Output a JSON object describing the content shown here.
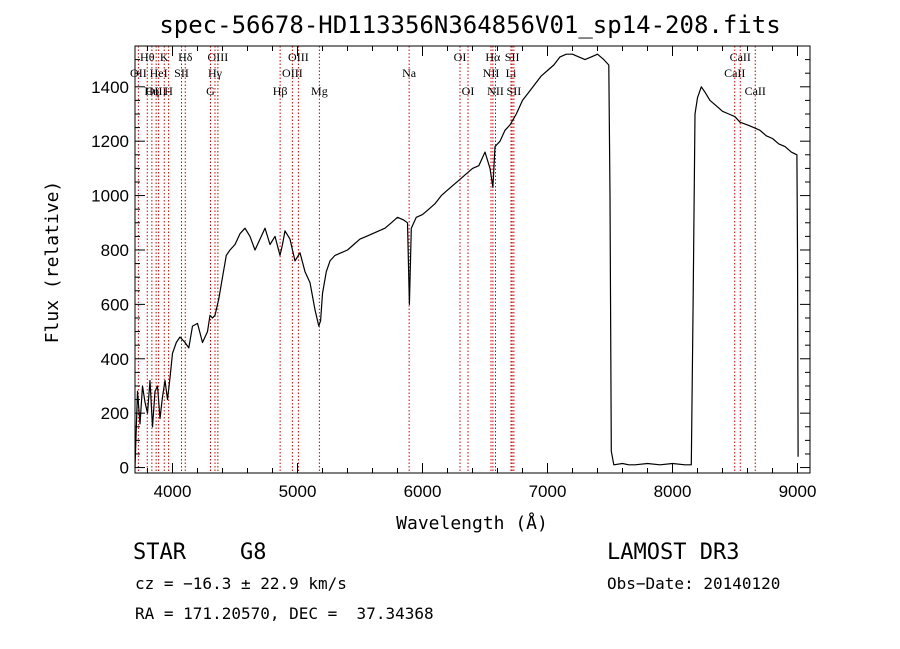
{
  "chart_data": {
    "type": "line",
    "title": "spec-56678-HD113356N364856V01_sp14-208.fits",
    "xlabel": "Wavelength (Å)",
    "ylabel": "Flux (relative)",
    "xlim": [
      3700,
      9100
    ],
    "ylim": [
      -20,
      1550
    ],
    "xticks": [
      4000,
      5000,
      6000,
      7000,
      8000,
      9000
    ],
    "yticks": [
      0,
      200,
      400,
      600,
      800,
      1000,
      1200,
      1400
    ],
    "series": [
      {
        "name": "flux",
        "x": [
          3700,
          3720,
          3740,
          3760,
          3780,
          3800,
          3820,
          3840,
          3860,
          3880,
          3900,
          3920,
          3940,
          3960,
          3980,
          4000,
          4030,
          4060,
          4100,
          4130,
          4160,
          4200,
          4240,
          4280,
          4300,
          4320,
          4340,
          4370,
          4400,
          4430,
          4460,
          4500,
          4540,
          4580,
          4620,
          4660,
          4700,
          4740,
          4780,
          4820,
          4860,
          4880,
          4900,
          4940,
          4980,
          5020,
          5060,
          5100,
          5140,
          5170,
          5185,
          5200,
          5230,
          5260,
          5300,
          5350,
          5400,
          5450,
          5500,
          5550,
          5600,
          5650,
          5700,
          5750,
          5800,
          5850,
          5880,
          5895,
          5910,
          5950,
          6000,
          6050,
          6100,
          6150,
          6200,
          6250,
          6300,
          6350,
          6400,
          6450,
          6500,
          6540,
          6560,
          6563,
          6580,
          6620,
          6660,
          6700,
          6750,
          6800,
          6850,
          6900,
          6950,
          7000,
          7050,
          7100,
          7150,
          7200,
          7250,
          7300,
          7350,
          7400,
          7450,
          7490,
          7500,
          7510,
          7530,
          7600,
          7650,
          7700,
          7800,
          7900,
          8000,
          8100,
          8150,
          8165,
          8180,
          8200,
          8230,
          8260,
          8300,
          8350,
          8400,
          8450,
          8500,
          8540,
          8600,
          8650,
          8700,
          8750,
          8800,
          8850,
          8900,
          8950,
          8995,
          9000,
          9005
        ],
        "y": [
          0,
          280,
          160,
          300,
          240,
          200,
          320,
          150,
          280,
          300,
          180,
          260,
          320,
          250,
          330,
          420,
          460,
          480,
          460,
          440,
          520,
          530,
          460,
          500,
          560,
          550,
          560,
          620,
          700,
          780,
          800,
          820,
          860,
          880,
          850,
          800,
          840,
          880,
          820,
          850,
          780,
          820,
          870,
          840,
          760,
          790,
          720,
          680,
          580,
          520,
          540,
          640,
          720,
          760,
          780,
          790,
          800,
          820,
          840,
          850,
          860,
          870,
          880,
          900,
          920,
          910,
          900,
          600,
          880,
          920,
          930,
          950,
          970,
          1000,
          1020,
          1040,
          1060,
          1080,
          1100,
          1110,
          1160,
          1100,
          1040,
          1030,
          1180,
          1200,
          1240,
          1260,
          1300,
          1350,
          1380,
          1410,
          1440,
          1460,
          1480,
          1510,
          1520,
          1520,
          1510,
          1500,
          1510,
          1520,
          1500,
          1480,
          1000,
          60,
          10,
          15,
          10,
          10,
          15,
          10,
          15,
          10,
          10,
          600,
          1300,
          1360,
          1400,
          1380,
          1350,
          1330,
          1310,
          1300,
          1290,
          1270,
          1260,
          1250,
          1240,
          1220,
          1210,
          1190,
          1180,
          1160,
          1150,
          800,
          40
        ]
      }
    ],
    "emission_lines": [
      {
        "label": "Hθ",
        "x": 3798,
        "row": 1
      },
      {
        "label": "OII",
        "x": 3727,
        "row": 2
      },
      {
        "label": "OIII",
        "x": 3869,
        "row": 3
      },
      {
        "label": "K",
        "x": 3934,
        "row": 1
      },
      {
        "label": "HeI",
        "x": 3889,
        "row": 2
      },
      {
        "label": "Hη",
        "x": 3835,
        "row": 3
      },
      {
        "label": "Hδ",
        "x": 4102,
        "row": 1
      },
      {
        "label": "SII",
        "x": 4072,
        "row": 2
      },
      {
        "label": "H",
        "x": 3969,
        "row": 3
      },
      {
        "label": "OIII",
        "x": 4363,
        "row": 1
      },
      {
        "label": "Hγ",
        "x": 4340,
        "row": 2
      },
      {
        "label": "G",
        "x": 4304,
        "row": 3
      },
      {
        "label": "OIII",
        "x": 5007,
        "row": 1
      },
      {
        "label": "OIII",
        "x": 4959,
        "row": 2
      },
      {
        "label": "Hβ",
        "x": 4861,
        "row": 3
      },
      {
        "label": "Mg",
        "x": 5175,
        "row": 3
      },
      {
        "label": "Na",
        "x": 5893,
        "row": 2
      },
      {
        "label": "OI",
        "x": 6300,
        "row": 1
      },
      {
        "label": "OI",
        "x": 6364,
        "row": 3
      },
      {
        "label": "Hα",
        "x": 6563,
        "row": 1
      },
      {
        "label": "SII",
        "x": 6717,
        "row": 1
      },
      {
        "label": "NII",
        "x": 6548,
        "row": 2
      },
      {
        "label": "Li",
        "x": 6708,
        "row": 2
      },
      {
        "label": "NII",
        "x": 6584,
        "row": 3
      },
      {
        "label": "SII",
        "x": 6731,
        "row": 3
      },
      {
        "label": "CaII",
        "x": 8542,
        "row": 1
      },
      {
        "label": "CaII",
        "x": 8498,
        "row": 2
      },
      {
        "label": "CaII",
        "x": 8662,
        "row": 3
      }
    ],
    "colors": {
      "spectrum": "#000000",
      "line_marker": "#cc0000"
    }
  },
  "info": {
    "object_class": "STAR",
    "subclass": "G8",
    "survey": "LAMOST DR3",
    "redshift": "cz = −16.3 ± 22.9 km/s",
    "obs_date": "Obs−Date: 20140120",
    "coords": "RA = 171.20570, DEC =  37.34368"
  }
}
